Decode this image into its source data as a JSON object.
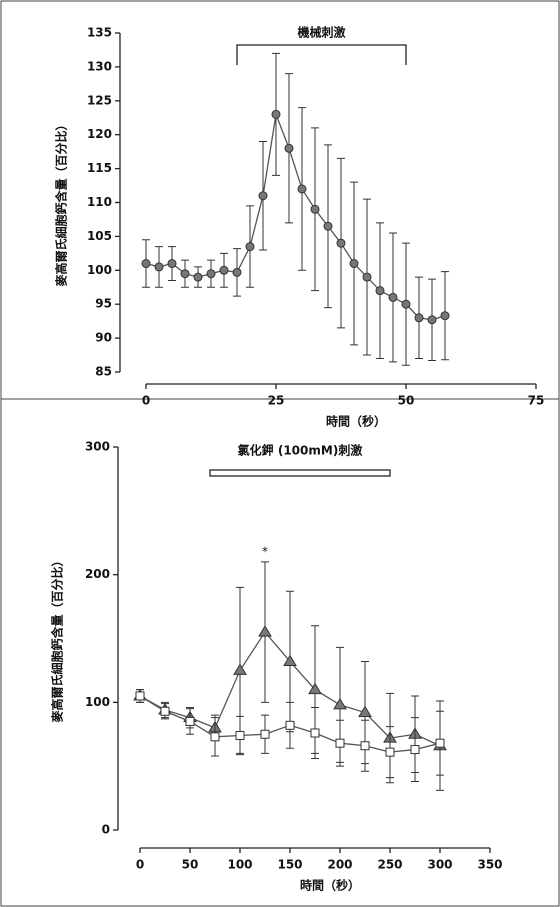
{
  "chart_data": [
    {
      "type": "line",
      "xlabel": "時間（秒）",
      "ylabel": "麥高爾氏細胞鈣含量（百分比）",
      "annotation": {
        "text": "機械刺激",
        "x": [
          17.5,
          50
        ]
      },
      "x": [
        0,
        2.5,
        5,
        7.5,
        10,
        12.5,
        15,
        17.5,
        20,
        22.5,
        25,
        27.5,
        30,
        32.5,
        35,
        37.5,
        40,
        42.5,
        45,
        47.5,
        50,
        52.5,
        55,
        57.5
      ],
      "series": [
        {
          "marker": "circle",
          "color": "#555555",
          "values": [
            101,
            100.5,
            101,
            99.5,
            99,
            99.5,
            100,
            99.7,
            103.5,
            111,
            123,
            118,
            112,
            109,
            106.5,
            104,
            101,
            99,
            97,
            96,
            95,
            93,
            92.7,
            93.3
          ],
          "errors": [
            3.5,
            3,
            2.5,
            2,
            1.5,
            2,
            2.5,
            3.5,
            6,
            8,
            9,
            11,
            12,
            12,
            12,
            12.5,
            12,
            11.5,
            10,
            9.5,
            9,
            6,
            6,
            6.5
          ]
        }
      ],
      "xlim": [
        0,
        75
      ],
      "xticks": [
        0,
        25,
        50,
        75
      ],
      "ylim": [
        85,
        135
      ],
      "yticks": [
        85,
        90,
        95,
        100,
        105,
        110,
        115,
        120,
        125,
        130,
        135
      ]
    },
    {
      "type": "line",
      "xlabel": "時間（秒）",
      "ylabel": "麥高爾氏細胞鈣含量（百分比）",
      "annotation": {
        "text": "氯化鉀 (100mM)刺激",
        "x": [
          70,
          250
        ]
      },
      "star": {
        "text": "*",
        "x": 125
      },
      "x": [
        0,
        25,
        50,
        75,
        100,
        125,
        150,
        175,
        200,
        225,
        250,
        275,
        300
      ],
      "series": [
        {
          "marker": "triangle",
          "color": "#555555",
          "values": [
            105,
            94,
            88,
            80,
            125,
            155,
            132,
            110,
            98,
            92,
            72,
            75,
            66
          ],
          "errors": [
            5,
            6,
            8,
            10,
            65,
            55,
            55,
            50,
            45,
            40,
            35,
            30,
            35
          ]
        },
        {
          "marker": "square",
          "color": "#555555",
          "values": [
            105,
            93,
            85,
            73,
            74,
            75,
            82,
            76,
            68,
            66,
            61,
            63,
            68
          ],
          "errors": [
            5,
            6,
            10,
            15,
            15,
            15,
            18,
            20,
            18,
            20,
            20,
            25,
            25
          ]
        }
      ],
      "xlim": [
        0,
        350
      ],
      "xticks": [
        0,
        50,
        100,
        150,
        200,
        250,
        300,
        350
      ],
      "ylim": [
        0,
        300
      ],
      "yticks": [
        0,
        100,
        200,
        300
      ]
    }
  ]
}
